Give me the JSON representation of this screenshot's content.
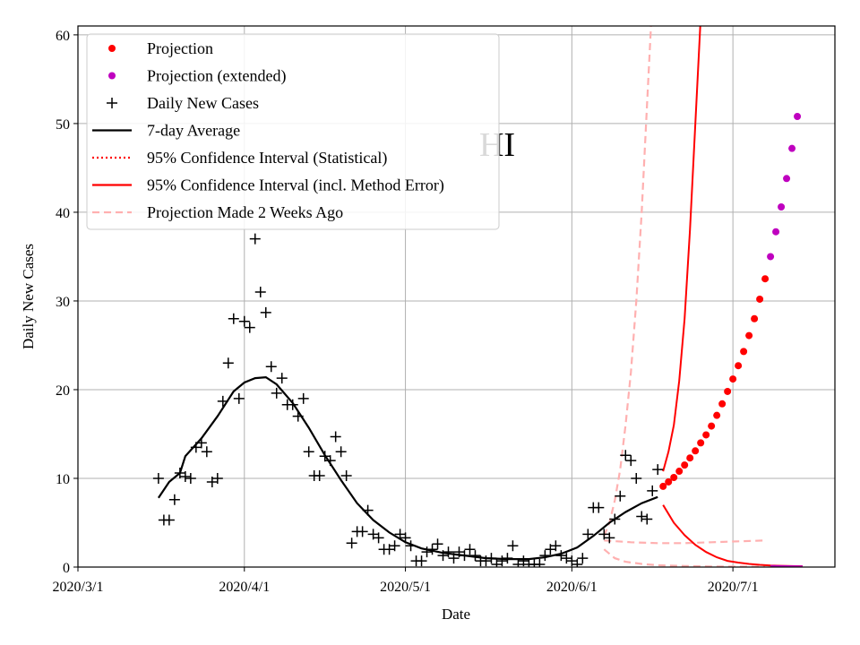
{
  "chart_data": {
    "type": "line",
    "state_label": "HI",
    "xlabel": "Date",
    "ylabel": "Daily New Cases",
    "x_domain": [
      "2020-03-01",
      "2020-07-20"
    ],
    "ylim": [
      0,
      61
    ],
    "x_ticks": [
      {
        "date": "2020-03-01",
        "label": "2020/3/1"
      },
      {
        "date": "2020-04-01",
        "label": "2020/4/1"
      },
      {
        "date": "2020-05-01",
        "label": "2020/5/1"
      },
      {
        "date": "2020-06-01",
        "label": "2020/6/1"
      },
      {
        "date": "2020-07-01",
        "label": "2020/7/1"
      }
    ],
    "y_ticks": [
      0,
      10,
      20,
      30,
      40,
      50,
      60
    ],
    "grid": true,
    "legend_position": "top-left",
    "legend": [
      {
        "label": "Projection",
        "style": "dot",
        "color": "#ff0000"
      },
      {
        "label": "Projection (extended)",
        "style": "dot",
        "color": "#bf00bf"
      },
      {
        "label": "Daily New Cases",
        "style": "plus",
        "color": "#000000"
      },
      {
        "label": "7-day Average",
        "style": "solid",
        "color": "#000000"
      },
      {
        "label": "95% Confidence Interval (Statistical)",
        "style": "dotted",
        "color": "#ff0000"
      },
      {
        "label": "95% Confidence Interval (incl. Method Error)",
        "style": "solid",
        "color": "#ff0000"
      },
      {
        "label": "Projection Made 2 Weeks Ago",
        "style": "dashed",
        "color": "#ffb0b0"
      }
    ],
    "daily_new_cases": [
      [
        "2020-03-16",
        10
      ],
      [
        "2020-03-17",
        5.3
      ],
      [
        "2020-03-18",
        5.3
      ],
      [
        "2020-03-19",
        7.6
      ],
      [
        "2020-03-20",
        10.6
      ],
      [
        "2020-03-21",
        10.2
      ],
      [
        "2020-03-22",
        10
      ],
      [
        "2020-03-23",
        13.5
      ],
      [
        "2020-03-24",
        14
      ],
      [
        "2020-03-25",
        13
      ],
      [
        "2020-03-26",
        9.6
      ],
      [
        "2020-03-27",
        10
      ],
      [
        "2020-03-28",
        18.7
      ],
      [
        "2020-03-29",
        23
      ],
      [
        "2020-03-30",
        28
      ],
      [
        "2020-03-31",
        19
      ],
      [
        "2020-04-01",
        27.7
      ],
      [
        "2020-04-02",
        27
      ],
      [
        "2020-04-03",
        37
      ],
      [
        "2020-04-04",
        31
      ],
      [
        "2020-04-05",
        28.7
      ],
      [
        "2020-04-06",
        22.6
      ],
      [
        "2020-04-07",
        19.6
      ],
      [
        "2020-04-08",
        21.3
      ],
      [
        "2020-04-09",
        18.3
      ],
      [
        "2020-04-10",
        18.3
      ],
      [
        "2020-04-11",
        17
      ],
      [
        "2020-04-12",
        19
      ],
      [
        "2020-04-13",
        13
      ],
      [
        "2020-04-14",
        10.3
      ],
      [
        "2020-04-15",
        10.3
      ],
      [
        "2020-04-16",
        12.5
      ],
      [
        "2020-04-17",
        12
      ],
      [
        "2020-04-18",
        14.7
      ],
      [
        "2020-04-19",
        13
      ],
      [
        "2020-04-20",
        10.3
      ],
      [
        "2020-04-21",
        2.7
      ],
      [
        "2020-04-22",
        4
      ],
      [
        "2020-04-23",
        4
      ],
      [
        "2020-04-24",
        6.4
      ],
      [
        "2020-04-25",
        3.7
      ],
      [
        "2020-04-26",
        3.3
      ],
      [
        "2020-04-27",
        2
      ],
      [
        "2020-04-28",
        2
      ],
      [
        "2020-04-29",
        2.4
      ],
      [
        "2020-04-30",
        3.7
      ],
      [
        "2020-05-01",
        3.3
      ],
      [
        "2020-05-02",
        2.4
      ],
      [
        "2020-05-03",
        0.7
      ],
      [
        "2020-05-04",
        0.7
      ],
      [
        "2020-05-05",
        1.7
      ],
      [
        "2020-05-06",
        2
      ],
      [
        "2020-05-07",
        2.6
      ],
      [
        "2020-05-08",
        1.3
      ],
      [
        "2020-05-09",
        1.7
      ],
      [
        "2020-05-10",
        1
      ],
      [
        "2020-05-11",
        1.7
      ],
      [
        "2020-05-12",
        1.3
      ],
      [
        "2020-05-13",
        2
      ],
      [
        "2020-05-14",
        1.3
      ],
      [
        "2020-05-15",
        0.7
      ],
      [
        "2020-05-16",
        0.7
      ],
      [
        "2020-05-17",
        1
      ],
      [
        "2020-05-18",
        0.3
      ],
      [
        "2020-05-19",
        0.7
      ],
      [
        "2020-05-20",
        1
      ],
      [
        "2020-05-21",
        2.4
      ],
      [
        "2020-05-22",
        0.3
      ],
      [
        "2020-05-23",
        0.7
      ],
      [
        "2020-05-24",
        0.3
      ],
      [
        "2020-05-25",
        0.3
      ],
      [
        "2020-05-26",
        0.3
      ],
      [
        "2020-05-27",
        1.3
      ],
      [
        "2020-05-28",
        2
      ],
      [
        "2020-05-29",
        2.4
      ],
      [
        "2020-05-30",
        1.3
      ],
      [
        "2020-05-31",
        1
      ],
      [
        "2020-06-01",
        0.7
      ],
      [
        "2020-06-02",
        0.3
      ],
      [
        "2020-06-03",
        1
      ],
      [
        "2020-06-04",
        3.7
      ],
      [
        "2020-06-05",
        6.7
      ],
      [
        "2020-06-06",
        6.7
      ],
      [
        "2020-06-07",
        3.7
      ],
      [
        "2020-06-08",
        3.3
      ],
      [
        "2020-06-09",
        5.4
      ],
      [
        "2020-06-10",
        8
      ],
      [
        "2020-06-11",
        12.6
      ],
      [
        "2020-06-12",
        12
      ],
      [
        "2020-06-13",
        10
      ],
      [
        "2020-06-14",
        5.7
      ],
      [
        "2020-06-15",
        5.4
      ],
      [
        "2020-06-16",
        8.6
      ],
      [
        "2020-06-17",
        11
      ]
    ],
    "seven_day_average": [
      [
        "2020-03-16",
        7.8
      ],
      [
        "2020-03-18",
        9.6
      ],
      [
        "2020-03-20",
        10.6
      ],
      [
        "2020-03-21",
        12.5
      ],
      [
        "2020-03-24",
        14.5
      ],
      [
        "2020-03-27",
        17
      ],
      [
        "2020-03-30",
        19.8
      ],
      [
        "2020-04-01",
        20.8
      ],
      [
        "2020-04-03",
        21.3
      ],
      [
        "2020-04-05",
        21.4
      ],
      [
        "2020-04-07",
        20.6
      ],
      [
        "2020-04-10",
        18.5
      ],
      [
        "2020-04-13",
        15.7
      ],
      [
        "2020-04-16",
        12.6
      ],
      [
        "2020-04-19",
        9.8
      ],
      [
        "2020-04-22",
        7.2
      ],
      [
        "2020-04-25",
        5.3
      ],
      [
        "2020-04-28",
        3.9
      ],
      [
        "2020-05-01",
        2.8
      ],
      [
        "2020-05-04",
        2.1
      ],
      [
        "2020-05-08",
        1.6
      ],
      [
        "2020-05-12",
        1.3
      ],
      [
        "2020-05-16",
        1
      ],
      [
        "2020-05-20",
        0.9
      ],
      [
        "2020-05-24",
        0.9
      ],
      [
        "2020-05-27",
        1.1
      ],
      [
        "2020-05-30",
        1.5
      ],
      [
        "2020-06-02",
        2.2
      ],
      [
        "2020-06-05",
        3.5
      ],
      [
        "2020-06-08",
        5
      ],
      [
        "2020-06-11",
        6.2
      ],
      [
        "2020-06-14",
        7.2
      ],
      [
        "2020-06-17",
        7.9
      ]
    ],
    "projection": [
      [
        "2020-06-18",
        9.1
      ],
      [
        "2020-06-19",
        9.6
      ],
      [
        "2020-06-20",
        10.1
      ],
      [
        "2020-06-21",
        10.8
      ],
      [
        "2020-06-22",
        11.5
      ],
      [
        "2020-06-23",
        12.3
      ],
      [
        "2020-06-24",
        13.1
      ],
      [
        "2020-06-25",
        14
      ],
      [
        "2020-06-26",
        14.9
      ],
      [
        "2020-06-27",
        15.9
      ],
      [
        "2020-06-28",
        17.1
      ],
      [
        "2020-06-29",
        18.4
      ],
      [
        "2020-06-30",
        19.8
      ],
      [
        "2020-07-01",
        21.2
      ],
      [
        "2020-07-02",
        22.7
      ],
      [
        "2020-07-03",
        24.3
      ],
      [
        "2020-07-04",
        26.1
      ],
      [
        "2020-07-05",
        28
      ],
      [
        "2020-07-06",
        30.2
      ],
      [
        "2020-07-07",
        32.5
      ]
    ],
    "projection_extended": [
      [
        "2020-07-08",
        35
      ],
      [
        "2020-07-09",
        37.8
      ],
      [
        "2020-07-10",
        40.6
      ],
      [
        "2020-07-11",
        43.8
      ],
      [
        "2020-07-12",
        47.2
      ],
      [
        "2020-07-13",
        50.8
      ]
    ],
    "ci_method_error_upper": [
      [
        "2020-06-18",
        10.8
      ],
      [
        "2020-06-19",
        13
      ],
      [
        "2020-06-20",
        16
      ],
      [
        "2020-06-21",
        21
      ],
      [
        "2020-06-22",
        28
      ],
      [
        "2020-06-23",
        38
      ],
      [
        "2020-06-24",
        50
      ],
      [
        "2020-06-25",
        62
      ]
    ],
    "ci_method_error_lower": [
      [
        "2020-06-18",
        7
      ],
      [
        "2020-06-20",
        5
      ],
      [
        "2020-06-22",
        3.6
      ],
      [
        "2020-06-24",
        2.5
      ],
      [
        "2020-06-26",
        1.7
      ],
      [
        "2020-06-28",
        1.1
      ],
      [
        "2020-06-30",
        0.7
      ],
      [
        "2020-07-02",
        0.5
      ],
      [
        "2020-07-04",
        0.35
      ],
      [
        "2020-07-06",
        0.25
      ],
      [
        "2020-07-08",
        0.18
      ],
      [
        "2020-07-10",
        0.14
      ],
      [
        "2020-07-12",
        0.11
      ],
      [
        "2020-07-14",
        0.09
      ]
    ],
    "projection_two_weeks_ago": [
      [
        "2020-06-07",
        3
      ],
      [
        "2020-06-12",
        2.8
      ],
      [
        "2020-06-17",
        2.7
      ],
      [
        "2020-06-22",
        2.7
      ],
      [
        "2020-06-27",
        2.8
      ],
      [
        "2020-07-02",
        2.9
      ],
      [
        "2020-07-07",
        3
      ]
    ],
    "projection_two_weeks_ago_upper": [
      [
        "2020-06-07",
        3.5
      ],
      [
        "2020-06-08",
        5
      ],
      [
        "2020-06-09",
        7.5
      ],
      [
        "2020-06-10",
        11
      ],
      [
        "2020-06-11",
        16
      ],
      [
        "2020-06-12",
        22
      ],
      [
        "2020-06-13",
        30
      ],
      [
        "2020-06-14",
        40
      ],
      [
        "2020-06-15",
        52
      ],
      [
        "2020-06-16",
        64
      ]
    ],
    "projection_two_weeks_ago_lower": [
      [
        "2020-06-07",
        2
      ],
      [
        "2020-06-09",
        1
      ],
      [
        "2020-06-11",
        0.6
      ],
      [
        "2020-06-14",
        0.35
      ],
      [
        "2020-06-17",
        0.2
      ],
      [
        "2020-06-22",
        0.12
      ],
      [
        "2020-06-27",
        0.07
      ],
      [
        "2020-07-02",
        0.05
      ],
      [
        "2020-07-07",
        0.04
      ]
    ]
  }
}
